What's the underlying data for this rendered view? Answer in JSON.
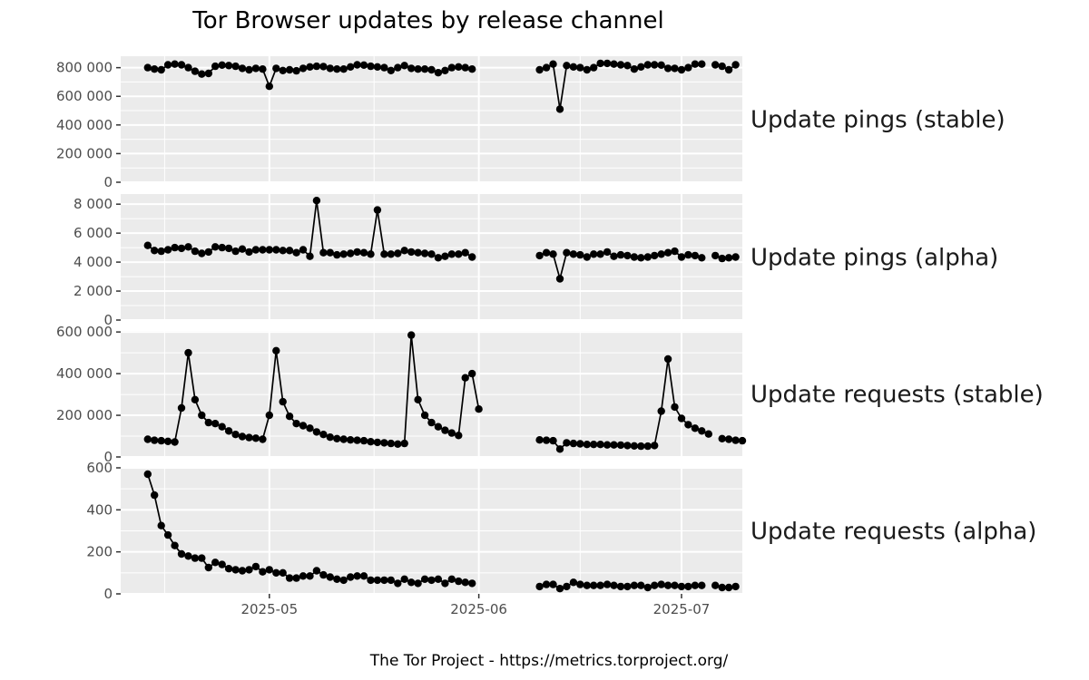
{
  "chart_data": {
    "type": "line",
    "title": "Tor Browser updates by release channel",
    "caption": "The Tor Project - https://metrics.torproject.org/",
    "start_date": "2025-04-13",
    "x_ticks": [
      "2025-05",
      "2025-06",
      "2025-07"
    ],
    "x_range": [
      "2025-04-09",
      "2025-07-10"
    ],
    "grid": true,
    "facets": [
      {
        "label": "Update pings (stable)",
        "ylim": [
          0,
          880000
        ],
        "y_ticks": [
          0,
          200000,
          400000,
          600000,
          800000
        ],
        "y_tick_labels": [
          "0",
          "200 000",
          "400 000",
          "600 000",
          "800 000"
        ],
        "values": [
          800000,
          790000,
          785000,
          820000,
          825000,
          820000,
          800000,
          775000,
          755000,
          760000,
          810000,
          818000,
          815000,
          810000,
          795000,
          785000,
          795000,
          790000,
          670000,
          795000,
          780000,
          785000,
          778000,
          795000,
          805000,
          810000,
          808000,
          795000,
          790000,
          790000,
          805000,
          820000,
          818000,
          810000,
          805000,
          800000,
          780000,
          800000,
          815000,
          795000,
          790000,
          790000,
          785000,
          765000,
          780000,
          800000,
          805000,
          800000,
          790000,
          null,
          null,
          null,
          null,
          null,
          null,
          null,
          null,
          null,
          785000,
          800000,
          825000,
          510000,
          815000,
          805000,
          800000,
          785000,
          800000,
          830000,
          830000,
          825000,
          820000,
          815000,
          790000,
          805000,
          820000,
          820000,
          818000,
          795000,
          795000,
          785000,
          800000,
          825000,
          825000,
          null,
          820000,
          810000,
          785000,
          820000
        ]
      },
      {
        "label": "Update pings (alpha)",
        "ylim": [
          0,
          8700
        ],
        "y_ticks": [
          0,
          2000,
          4000,
          6000,
          8000
        ],
        "y_tick_labels": [
          "0",
          "2 000",
          "4 000",
          "6 000",
          "8 000"
        ],
        "values": [
          5150,
          4800,
          4750,
          4850,
          5000,
          4950,
          5050,
          4750,
          4600,
          4700,
          5050,
          5000,
          4950,
          4750,
          4900,
          4700,
          4850,
          4850,
          4850,
          4850,
          4800,
          4800,
          4650,
          4850,
          4400,
          8250,
          4650,
          4650,
          4500,
          4550,
          4600,
          4700,
          4650,
          4550,
          7600,
          4550,
          4550,
          4600,
          4800,
          4700,
          4650,
          4600,
          4550,
          4300,
          4400,
          4550,
          4550,
          4650,
          4350,
          null,
          null,
          null,
          null,
          null,
          null,
          null,
          null,
          null,
          4450,
          4650,
          4550,
          2850,
          4650,
          4550,
          4500,
          4350,
          4550,
          4550,
          4700,
          4400,
          4500,
          4450,
          4350,
          4300,
          4350,
          4450,
          4550,
          4650,
          4750,
          4350,
          4500,
          4450,
          4300,
          null,
          4450,
          4250,
          4300,
          4350
        ]
      },
      {
        "label": "Update requests (stable)",
        "ylim": [
          0,
          605000
        ],
        "y_ticks": [
          0,
          200000,
          400000,
          600000
        ],
        "y_tick_labels": [
          "0",
          "200 000",
          "400 000",
          "600 000"
        ],
        "values": [
          85000,
          80000,
          78000,
          75000,
          72000,
          235000,
          500000,
          275000,
          200000,
          165000,
          160000,
          145000,
          125000,
          108000,
          98000,
          93000,
          90000,
          85000,
          200000,
          510000,
          265000,
          195000,
          160000,
          150000,
          138000,
          120000,
          108000,
          95000,
          88000,
          85000,
          82000,
          80000,
          78000,
          73000,
          70000,
          68000,
          65000,
          62000,
          65000,
          585000,
          275000,
          200000,
          165000,
          145000,
          128000,
          115000,
          103000,
          380000,
          400000,
          230000,
          null,
          null,
          null,
          null,
          null,
          null,
          null,
          null,
          82000,
          80000,
          78000,
          38000,
          68000,
          65000,
          63000,
          60000,
          60000,
          60000,
          58000,
          58000,
          57000,
          55000,
          53000,
          52000,
          52000,
          55000,
          220000,
          470000,
          240000,
          185000,
          155000,
          138000,
          125000,
          110000,
          null,
          88000,
          85000,
          80000,
          78000
        ]
      },
      {
        "label": "Update requests (alpha)",
        "ylim": [
          0,
          600
        ],
        "y_ticks": [
          0,
          200,
          400,
          600
        ],
        "y_tick_labels": [
          "0",
          "200",
          "400",
          "600"
        ],
        "values": [
          570,
          470,
          325,
          280,
          230,
          190,
          180,
          170,
          170,
          125,
          150,
          140,
          120,
          115,
          110,
          115,
          130,
          105,
          115,
          100,
          100,
          75,
          75,
          85,
          85,
          110,
          90,
          80,
          70,
          65,
          80,
          85,
          85,
          65,
          65,
          65,
          65,
          50,
          70,
          55,
          50,
          70,
          65,
          70,
          50,
          70,
          60,
          55,
          50,
          null,
          null,
          null,
          null,
          null,
          null,
          null,
          null,
          null,
          35,
          45,
          45,
          25,
          35,
          55,
          45,
          40,
          40,
          40,
          45,
          40,
          35,
          35,
          40,
          40,
          30,
          40,
          45,
          40,
          40,
          35,
          35,
          40,
          40,
          null,
          40,
          30,
          30,
          35
        ]
      }
    ]
  }
}
